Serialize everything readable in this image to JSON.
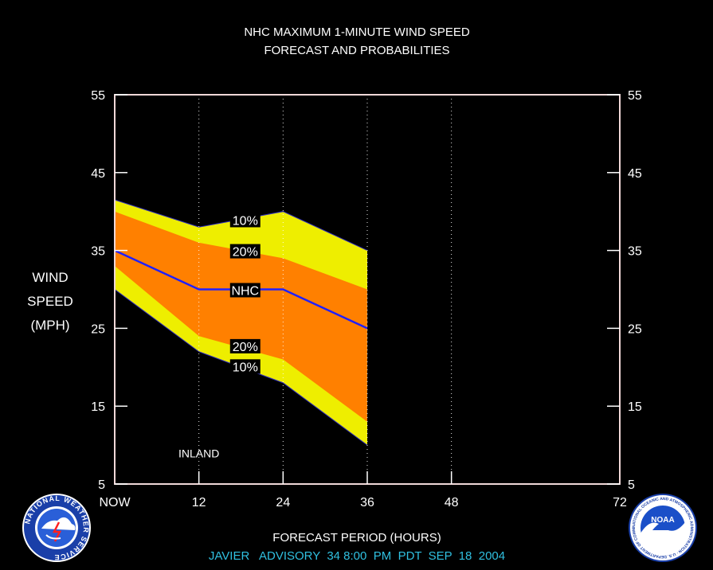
{
  "chart_data": {
    "type": "area",
    "title": "NHC MAXIMUM 1-MINUTE WIND SPEED",
    "subtitle": "FORECAST AND PROBABILITIES",
    "ylabel": [
      "WIND",
      "SPEED",
      "(MPH)"
    ],
    "xlabel": "FORECAST PERIOD (HOURS)",
    "ylim": [
      5,
      55
    ],
    "xlim": [
      0,
      72
    ],
    "y_ticks": [
      5,
      15,
      25,
      35,
      45,
      55
    ],
    "x_ticks": [
      {
        "value": 0,
        "label": "NOW"
      },
      {
        "value": 12,
        "label": "12"
      },
      {
        "value": 24,
        "label": "24"
      },
      {
        "value": 36,
        "label": "36"
      },
      {
        "value": 48,
        "label": "48"
      },
      {
        "value": 72,
        "label": "72"
      }
    ],
    "x": [
      0,
      12,
      24,
      36
    ],
    "series": [
      {
        "name": "10%",
        "role": "upper",
        "values": [
          41.5,
          38,
          40,
          35
        ]
      },
      {
        "name": "20%",
        "role": "upper",
        "values": [
          40,
          36,
          34,
          30
        ]
      },
      {
        "name": "NHC",
        "role": "forecast",
        "values": [
          35,
          30,
          30,
          25
        ]
      },
      {
        "name": "20%",
        "role": "lower",
        "values": [
          33,
          24,
          21,
          13
        ]
      },
      {
        "name": "10%",
        "role": "lower",
        "values": [
          30,
          22,
          18,
          10
        ]
      }
    ],
    "band_labels": [
      {
        "text": "10%",
        "x": 18.6,
        "y": 38.9
      },
      {
        "text": "20%",
        "x": 18.6,
        "y": 34.9
      },
      {
        "text": "NHC",
        "x": 18.6,
        "y": 29.9
      },
      {
        "text": "20%",
        "x": 18.6,
        "y": 22.7
      },
      {
        "text": "10%",
        "x": 18.6,
        "y": 20.1
      }
    ],
    "annotation": {
      "text": "INLAND",
      "x": 12,
      "y": 8.4
    },
    "grid": "dotted vertical at 12, 24, 36, 48",
    "colors": {
      "outer_band": "#eeee00",
      "inner_band": "#ff8000",
      "forecast_line": "#2020ff",
      "frame": "#f0d8d8",
      "advisory_text": "#30c0e0",
      "background": "#000000"
    }
  },
  "footer": {
    "storm": "JAVIER",
    "advisory_word": "ADVISORY",
    "advisory_number": "34",
    "time": "8:00",
    "ampm": "PM",
    "zone": "PDT",
    "date": "SEP  18  2004"
  },
  "logos": {
    "left_text": "NATIONAL WEATHER SERVICE",
    "right_text": "NATIONAL OCEANIC AND ATMOSPHERIC ADMINISTRATION · U.S. DEPARTMENT OF COMMERCE",
    "right_center": "NOAA"
  }
}
